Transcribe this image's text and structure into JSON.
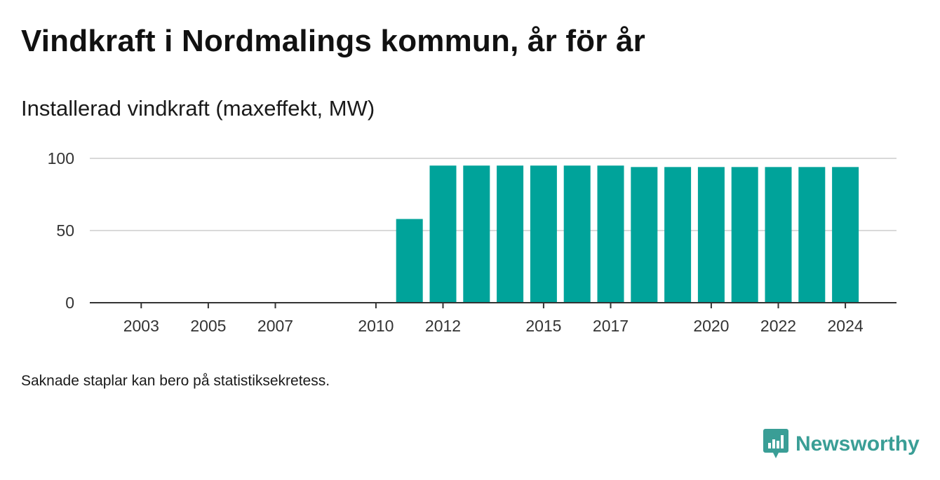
{
  "title": "Vindkraft i Nordmalings kommun, år för år",
  "subtitle": "Installerad vindkraft (maxeffekt, MW)",
  "note": "Saknade staplar kan bero på statistiksekretess.",
  "brand": {
    "name": "Newsworthy",
    "icon": "newsworthy-logo-icon",
    "color": "#3a9e96"
  },
  "colors": {
    "bar": "#00a39a",
    "grid": "#d9d9d9",
    "axis": "#333333"
  },
  "chart_data": {
    "type": "bar",
    "title": "Vindkraft i Nordmalings kommun, år för år",
    "subtitle": "Installerad vindkraft (maxeffekt, MW)",
    "xlabel": "",
    "ylabel": "",
    "categories": [
      2002,
      2003,
      2004,
      2005,
      2006,
      2007,
      2008,
      2009,
      2010,
      2011,
      2012,
      2013,
      2014,
      2015,
      2016,
      2017,
      2018,
      2019,
      2020,
      2021,
      2022,
      2023,
      2024
    ],
    "values": [
      null,
      null,
      null,
      null,
      null,
      null,
      null,
      null,
      null,
      58,
      95,
      95,
      95,
      95,
      95,
      95,
      94,
      94,
      94,
      94,
      94,
      94,
      94
    ],
    "x_tick_labels": [
      "2003",
      "2005",
      "2007",
      "2010",
      "2012",
      "2015",
      "2017",
      "2020",
      "2022",
      "2024"
    ],
    "y_ticks": [
      0,
      50,
      100
    ],
    "ylim": [
      0,
      100
    ],
    "grid": "horizontal",
    "legend": "none"
  }
}
